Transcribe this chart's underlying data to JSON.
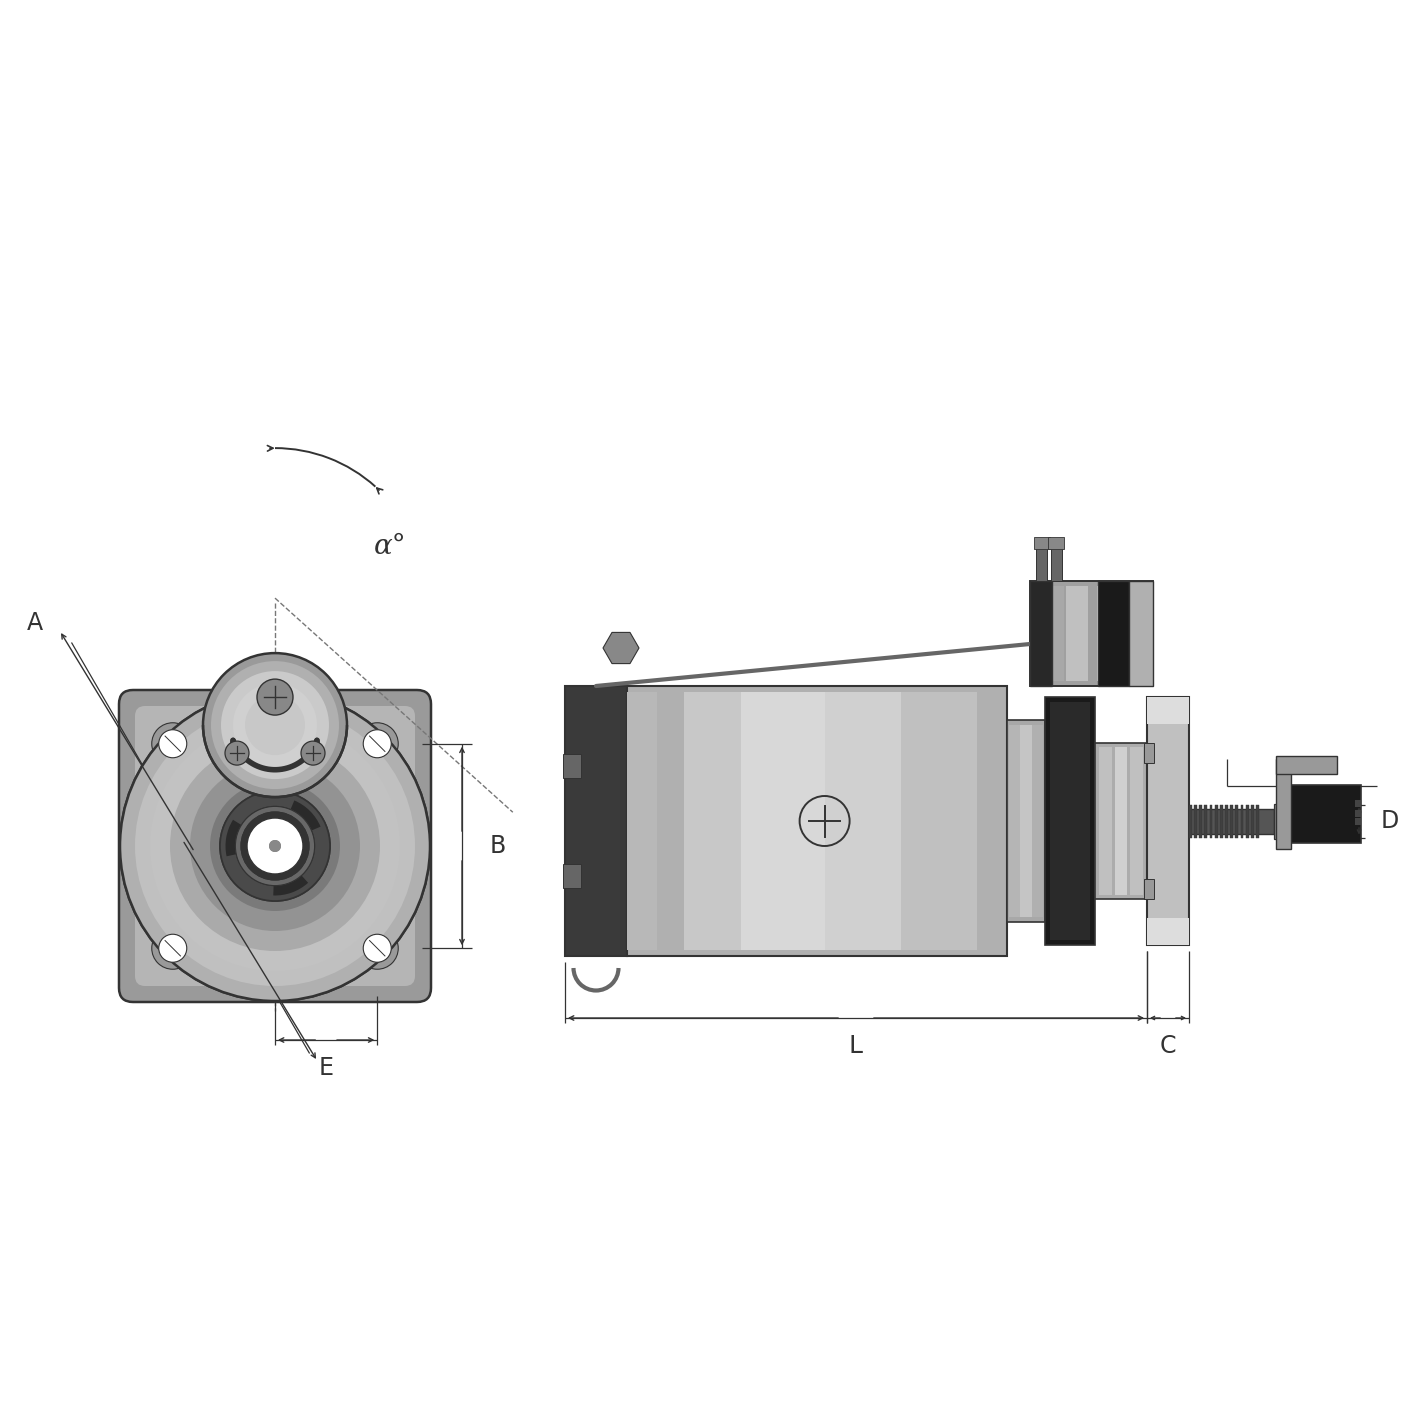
{
  "bg_color": "#ffffff",
  "lc": "#333333",
  "dark": "#222222",
  "dkgray": "#444444",
  "midgray": "#777777",
  "litegray": "#aaaaaa",
  "silver": "#c0c0c0",
  "lightsilver": "#d8d8d8",
  "verylight": "#e8e8e8",
  "label_A": "A",
  "label_B": "B",
  "label_C": "C",
  "label_D": "D",
  "label_E": "E",
  "label_L": "L",
  "label_alpha": "α°",
  "fs": 16,
  "dpi": 100
}
